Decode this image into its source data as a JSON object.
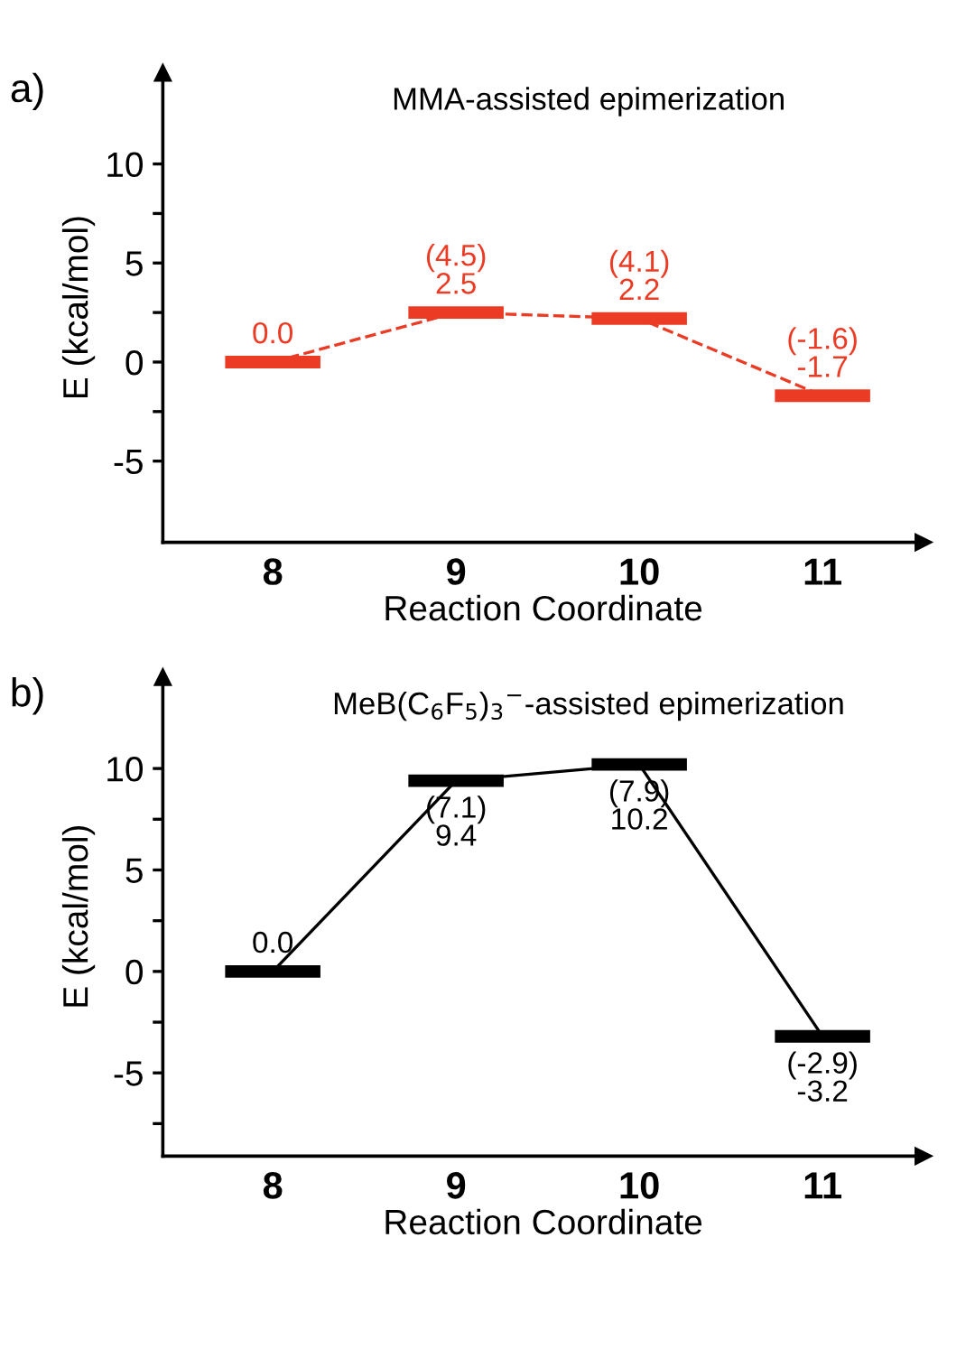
{
  "chart_data": [
    {
      "type": "line",
      "title": "MMA-assisted epimerization",
      "xlabel": "Reaction Coordinate",
      "ylabel": "E (kcal/mol)",
      "annotations": [
        "a)"
      ],
      "categories": [
        "8",
        "9",
        "10",
        "11"
      ],
      "series": [
        {
          "color": "#ec3b24",
          "values": [
            0.0,
            2.5,
            2.2,
            -1.7
          ],
          "value_labels": [
            "0.0",
            "(4.5)\n2.5",
            "(4.1)\n2.2",
            "(-1.6)\n-1.7"
          ]
        }
      ],
      "line_style": "dashed",
      "ylim": [
        -9.1,
        14.6
      ],
      "yticks": [
        -5,
        {
          "value": -2.5,
          "label": null
        },
        0,
        {
          "value": 2.5,
          "label": null
        },
        5,
        {
          "value": 7.5,
          "label": null
        },
        10
      ],
      "grid": false,
      "legend": false
    },
    {
      "type": "line",
      "title": "MeB(C$_{6}$F$_{5}$)$_{3}$$^{−}$-assisted epimerization",
      "xlabel": "Reaction Coordinate",
      "ylabel": "E (kcal/mol)",
      "annotations": [
        "b)"
      ],
      "categories": [
        "8",
        "9",
        "10",
        "11"
      ],
      "series": [
        {
          "color": "#000000",
          "values": [
            0.0,
            9.4,
            10.2,
            -3.2
          ],
          "value_labels": [
            "0.0",
            "(7.1)\n9.4",
            "(7.9)\n10.2",
            "(-2.9)\n-3.2"
          ]
        }
      ],
      "line_style": "solid",
      "ylim": [
        -9.1,
        14.5
      ],
      "yticks": [
        {
          "value": -7.5,
          "label": null
        },
        -5,
        {
          "value": -2.5,
          "label": null
        },
        0,
        {
          "value": 2.5,
          "label": null
        },
        5,
        {
          "value": 7.5,
          "label": null
        },
        10
      ],
      "grid": false,
      "legend": false
    }
  ]
}
